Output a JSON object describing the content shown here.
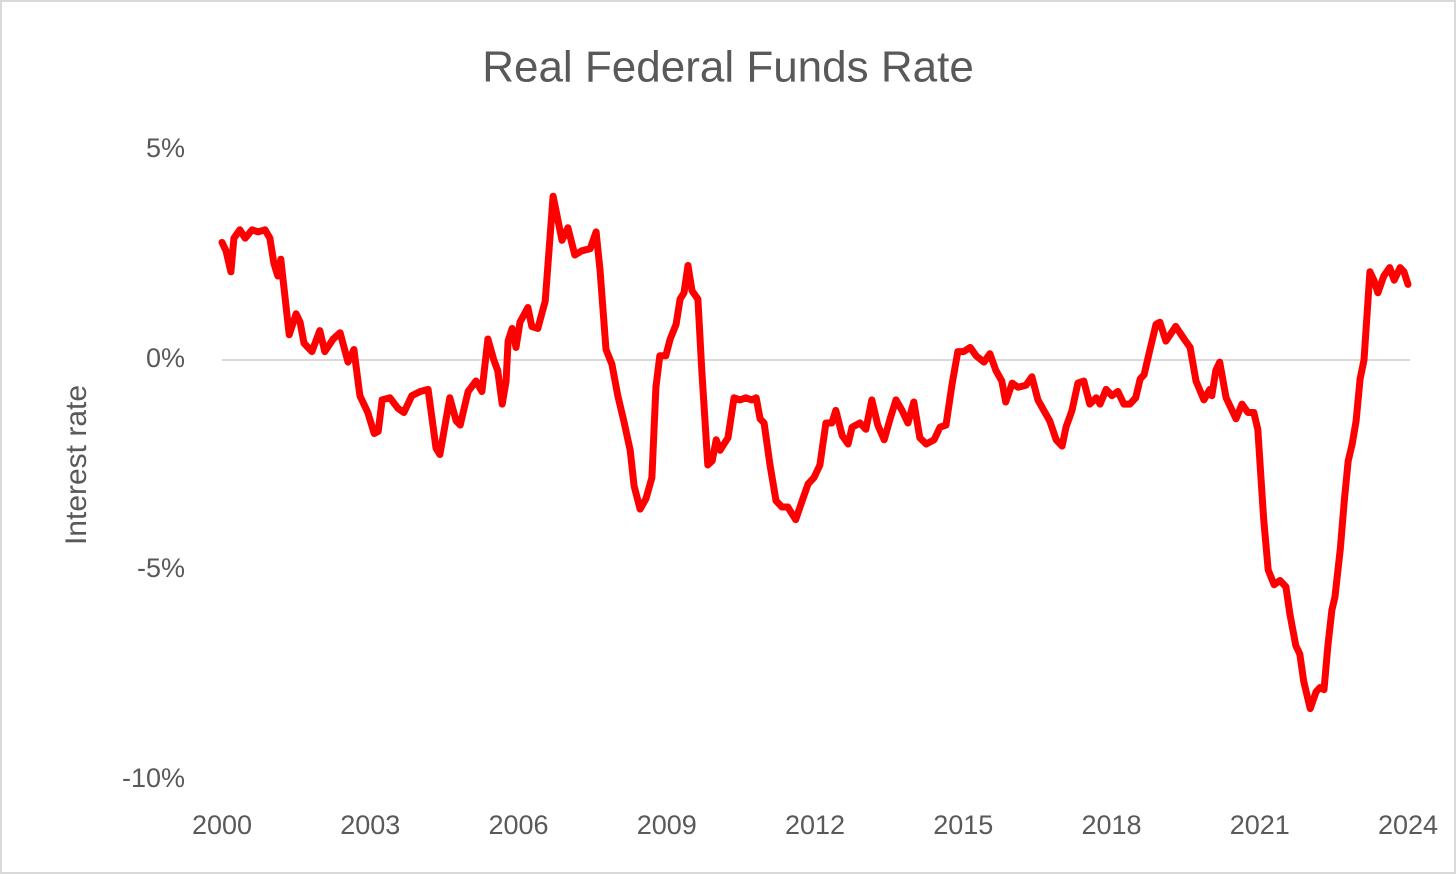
{
  "chart_data": {
    "type": "line",
    "title": "Real Federal Funds Rate",
    "y_label": "Interest rate",
    "xlim": [
      2000,
      2024
    ],
    "xticks": [
      2000,
      2003,
      2006,
      2009,
      2012,
      2015,
      2018,
      2021,
      2024
    ],
    "ylim": [
      -10,
      5
    ],
    "yticks": [
      {
        "value": -10,
        "label": "-10%"
      },
      {
        "value": -5,
        "label": "-5%"
      },
      {
        "value": 0,
        "label": "0%"
      },
      {
        "value": 5,
        "label": "5%"
      }
    ],
    "grid": false,
    "series": [
      {
        "color": "#ff0000",
        "x": [
          2000.0,
          2000.08,
          2000.18,
          2000.24,
          2000.36,
          2000.47,
          2000.61,
          2000.73,
          2000.87,
          2000.97,
          2001.05,
          2001.13,
          2001.19,
          2001.36,
          2001.5,
          2001.58,
          2001.66,
          2001.82,
          2001.98,
          2002.08,
          2002.25,
          2002.39,
          2002.55,
          2002.67,
          2002.79,
          2002.95,
          2003.08,
          2003.16,
          2003.24,
          2003.4,
          2003.56,
          2003.68,
          2003.84,
          2004.01,
          2004.17,
          2004.33,
          2004.41,
          2004.61,
          2004.74,
          2004.82,
          2004.98,
          2005.14,
          2005.26,
          2005.38,
          2005.5,
          2005.58,
          2005.67,
          2005.75,
          2005.79,
          2005.87,
          2005.95,
          2006.03,
          2006.19,
          2006.27,
          2006.39,
          2006.54,
          2006.7,
          2006.88,
          2007.0,
          2007.14,
          2007.28,
          2007.45,
          2007.57,
          2007.65,
          2007.77,
          2007.89,
          2008.01,
          2008.13,
          2008.26,
          2008.34,
          2008.46,
          2008.58,
          2008.7,
          2008.78,
          2008.86,
          2008.98,
          2009.07,
          2009.19,
          2009.27,
          2009.35,
          2009.43,
          2009.51,
          2009.63,
          2009.71,
          2009.83,
          2009.92,
          2010.0,
          2010.08,
          2010.24,
          2010.36,
          2010.48,
          2010.6,
          2010.72,
          2010.81,
          2010.89,
          2010.97,
          2011.09,
          2011.21,
          2011.33,
          2011.45,
          2011.61,
          2011.74,
          2011.86,
          2011.98,
          2012.1,
          2012.22,
          2012.34,
          2012.42,
          2012.55,
          2012.67,
          2012.75,
          2012.91,
          2013.03,
          2013.15,
          2013.27,
          2013.4,
          2013.52,
          2013.64,
          2013.76,
          2013.88,
          2014.0,
          2014.12,
          2014.25,
          2014.41,
          2014.53,
          2014.65,
          2014.77,
          2014.89,
          2015.01,
          2015.14,
          2015.26,
          2015.42,
          2015.54,
          2015.66,
          2015.78,
          2015.86,
          2015.99,
          2016.11,
          2016.27,
          2016.39,
          2016.51,
          2016.63,
          2016.75,
          2016.88,
          2017.0,
          2017.08,
          2017.2,
          2017.32,
          2017.44,
          2017.56,
          2017.69,
          2017.77,
          2017.89,
          2018.01,
          2018.13,
          2018.25,
          2018.37,
          2018.49,
          2018.58,
          2018.66,
          2018.78,
          2018.9,
          2018.98,
          2019.1,
          2019.3,
          2019.47,
          2019.59,
          2019.71,
          2019.87,
          2019.99,
          2020.03,
          2020.11,
          2020.19,
          2020.32,
          2020.44,
          2020.52,
          2020.64,
          2020.76,
          2020.88,
          2020.96,
          2021.08,
          2021.17,
          2021.29,
          2021.41,
          2021.53,
          2021.61,
          2021.73,
          2021.81,
          2021.89,
          2022.02,
          2022.14,
          2022.22,
          2022.3,
          2022.38,
          2022.46,
          2022.52,
          2022.63,
          2022.71,
          2022.79,
          2022.87,
          2022.95,
          2023.03,
          2023.11,
          2023.23,
          2023.31,
          2023.39,
          2023.51,
          2023.63,
          2023.72,
          2023.84,
          2023.92,
          2024.0
        ],
        "values": [
          2.8,
          2.6,
          2.1,
          2.9,
          3.1,
          2.9,
          3.1,
          3.05,
          3.1,
          2.9,
          2.3,
          2.0,
          2.4,
          0.6,
          1.1,
          0.9,
          0.4,
          0.2,
          0.7,
          0.2,
          0.5,
          0.65,
          -0.05,
          0.25,
          -0.85,
          -1.25,
          -1.75,
          -1.7,
          -0.95,
          -0.9,
          -1.15,
          -1.25,
          -0.85,
          -0.75,
          -0.7,
          -2.1,
          -2.25,
          -0.9,
          -1.45,
          -1.55,
          -0.75,
          -0.5,
          -0.75,
          0.5,
          0.0,
          -0.25,
          -1.05,
          -0.5,
          0.45,
          0.75,
          0.3,
          0.9,
          1.25,
          0.8,
          0.75,
          1.4,
          3.9,
          2.85,
          3.15,
          2.5,
          2.6,
          2.65,
          3.05,
          2.15,
          0.25,
          -0.1,
          -0.85,
          -1.45,
          -2.15,
          -3.0,
          -3.55,
          -3.3,
          -2.8,
          -0.65,
          0.1,
          0.1,
          0.5,
          0.85,
          1.45,
          1.6,
          2.25,
          1.65,
          1.45,
          -0.25,
          -2.5,
          -2.4,
          -1.9,
          -2.15,
          -1.85,
          -0.9,
          -0.95,
          -0.9,
          -0.95,
          -0.9,
          -1.4,
          -1.5,
          -2.5,
          -3.35,
          -3.5,
          -3.5,
          -3.8,
          -3.35,
          -2.95,
          -2.8,
          -2.5,
          -1.5,
          -1.5,
          -1.2,
          -1.8,
          -2.0,
          -1.6,
          -1.5,
          -1.65,
          -0.95,
          -1.55,
          -1.9,
          -1.4,
          -0.95,
          -1.2,
          -1.5,
          -1.0,
          -1.85,
          -2.0,
          -1.9,
          -1.6,
          -1.55,
          -0.6,
          0.2,
          0.2,
          0.3,
          0.1,
          -0.05,
          0.15,
          -0.25,
          -0.5,
          -1.0,
          -0.55,
          -0.65,
          -0.6,
          -0.4,
          -0.95,
          -1.2,
          -1.45,
          -1.9,
          -2.05,
          -1.6,
          -1.2,
          -0.55,
          -0.5,
          -1.05,
          -0.9,
          -1.05,
          -0.7,
          -0.85,
          -0.75,
          -1.05,
          -1.05,
          -0.9,
          -0.45,
          -0.35,
          0.25,
          0.85,
          0.9,
          0.45,
          0.8,
          0.5,
          0.3,
          -0.5,
          -0.95,
          -0.7,
          -0.85,
          -0.25,
          -0.05,
          -0.9,
          -1.2,
          -1.4,
          -1.05,
          -1.25,
          -1.25,
          -1.65,
          -3.8,
          -5.0,
          -5.35,
          -5.25,
          -5.4,
          -6.05,
          -6.8,
          -7.0,
          -7.65,
          -8.3,
          -7.9,
          -7.8,
          -7.85,
          -6.8,
          -5.95,
          -5.65,
          -4.5,
          -3.35,
          -2.4,
          -2.0,
          -1.45,
          -0.45,
          0.0,
          2.1,
          1.9,
          1.6,
          2.0,
          2.2,
          1.9,
          2.2,
          2.1,
          1.8
        ]
      }
    ]
  }
}
